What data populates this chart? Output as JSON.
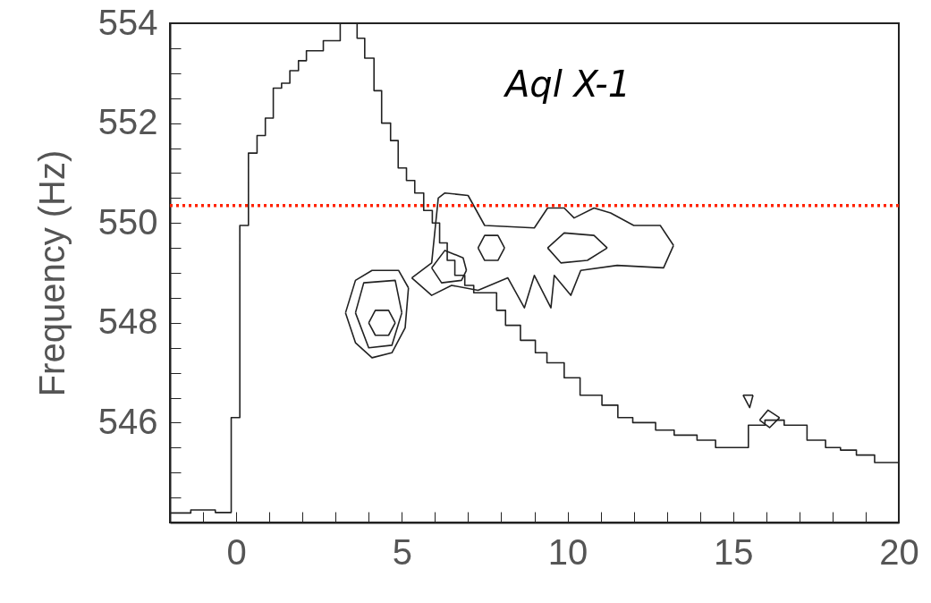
{
  "chart_data": {
    "type": "line",
    "ylabel": "Frequency (Hz)",
    "annotations": [
      "Aql X-1"
    ],
    "xlim": [
      -2,
      20
    ],
    "ylim": [
      544,
      554
    ],
    "xticks": [
      {
        "value": -2,
        "label": null
      },
      {
        "value": -1,
        "label": null
      },
      0,
      {
        "value": 1,
        "label": null
      },
      {
        "value": 2,
        "label": null
      },
      {
        "value": 3,
        "label": null
      },
      {
        "value": 4,
        "label": null
      },
      5,
      {
        "value": 6,
        "label": null
      },
      {
        "value": 7,
        "label": null
      },
      {
        "value": 8,
        "label": null
      },
      {
        "value": 9,
        "label": null
      },
      10,
      {
        "value": 11,
        "label": null
      },
      {
        "value": 12,
        "label": null
      },
      {
        "value": 13,
        "label": null
      },
      {
        "value": 14,
        "label": null
      },
      15,
      {
        "value": 16,
        "label": null
      },
      {
        "value": 17,
        "label": null
      },
      {
        "value": 18,
        "label": null
      },
      {
        "value": 19,
        "label": null
      },
      20
    ],
    "yticks": [
      {
        "value": 544,
        "label": null
      },
      {
        "value": 544.5,
        "label": null
      },
      {
        "value": 545,
        "label": null
      },
      {
        "value": 545.5,
        "label": null
      },
      546,
      {
        "value": 546.5,
        "label": null
      },
      {
        "value": 547,
        "label": null
      },
      {
        "value": 547.5,
        "label": null
      },
      548,
      {
        "value": 548.5,
        "label": null
      },
      {
        "value": 549,
        "label": null
      },
      {
        "value": 549.5,
        "label": null
      },
      550,
      {
        "value": 550.5,
        "label": null
      },
      {
        "value": 551,
        "label": null
      },
      {
        "value": 551.5,
        "label": null
      },
      552,
      {
        "value": 552.5,
        "label": null
      },
      {
        "value": 553,
        "label": null
      },
      {
        "value": 553.5,
        "label": null
      },
      554
    ],
    "grid": false,
    "marker": "none",
    "line_style": "solid",
    "ref_lines": [
      {
        "axis": "y",
        "value": 550.35,
        "color": "#ff2200",
        "line_style": "dotted"
      }
    ],
    "series": [
      {
        "type": "step",
        "color": "#222222",
        "x": [
          -2,
          -1.37,
          -0.63,
          -0.15,
          0.11,
          0.37,
          0.63,
          0.88,
          1.12,
          1.37,
          1.62,
          1.88,
          2.12,
          2.63,
          3.14,
          3.65,
          3.88,
          4.16,
          4.39,
          4.66,
          4.89,
          5.14,
          5.39,
          5.66,
          5.92,
          6.14,
          6.37,
          6.6,
          6.9,
          7.17,
          7.86,
          8.13,
          8.58,
          9.03,
          9.38,
          9.9,
          10.38,
          11.04,
          11.52,
          11.97,
          12.66,
          13.22,
          13.91,
          14.47,
          15.46,
          15.96,
          16.54,
          17.23,
          17.79,
          18.24,
          18.72,
          19.27,
          20
        ],
        "values": [
          544.19,
          544.25,
          544.2,
          546.1,
          549.95,
          551.4,
          551.75,
          552.1,
          552.7,
          552.8,
          553.05,
          553.25,
          553.45,
          553.65,
          554,
          553.7,
          553.3,
          552.65,
          552,
          551.65,
          551.1,
          550.85,
          550.6,
          550.25,
          550,
          549.6,
          549.25,
          548.95,
          548.75,
          548.6,
          548.25,
          547.95,
          547.65,
          547.4,
          547.2,
          546.9,
          546.55,
          546.35,
          546.1,
          546,
          545.85,
          545.75,
          545.65,
          545.5,
          545.95,
          546.05,
          545.95,
          545.65,
          545.5,
          545.45,
          545.35,
          545.2,
          545.2
        ]
      },
      {
        "color": "#222222",
        "x": [
          3.3,
          3.6,
          4.1,
          4.9,
          5.2
        ],
        "values": [
          548.2,
          548.85,
          549.05,
          549.05,
          548.7
        ]
      },
      {
        "color": "#222222",
        "x": [
          3.3,
          3.6,
          4.1,
          4.7,
          5.1,
          5.2
        ],
        "values": [
          548.2,
          547.6,
          547.3,
          547.4,
          547.9,
          548.7
        ]
      },
      {
        "color": "#222222",
        "x": [
          3.6,
          3.85,
          4.8,
          5
        ],
        "values": [
          548.2,
          548.8,
          548.85,
          548.2
        ]
      },
      {
        "color": "#222222",
        "x": [
          3.6,
          4,
          4.7,
          5
        ],
        "values": [
          548.2,
          547.5,
          547.55,
          548.2
        ]
      },
      {
        "color": "#222222",
        "x": [
          4,
          4.2,
          4.6,
          4.8
        ],
        "values": [
          548,
          548.25,
          548.25,
          548
        ]
      },
      {
        "color": "#222222",
        "x": [
          4,
          4.2,
          4.6,
          4.8
        ],
        "values": [
          548,
          547.75,
          547.75,
          548
        ]
      },
      {
        "color": "#222222",
        "x": [
          5.3,
          5.9,
          6.1,
          6.3,
          7,
          7.5,
          9,
          9.4,
          9.9,
          10.2,
          10.8,
          11.3,
          12,
          12.8,
          13.2
        ],
        "values": [
          548.9,
          549.2,
          550.5,
          550.6,
          550.55,
          549.95,
          549.9,
          550.3,
          550.3,
          550.1,
          550.3,
          550.2,
          549.95,
          549.95,
          549.55
        ]
      },
      {
        "color": "#222222",
        "x": [
          5.3,
          5.9,
          6.5,
          7.3,
          8.2,
          8.7,
          9,
          9.5,
          9.6,
          10.1,
          10.4,
          11.5,
          12.9,
          13.2
        ],
        "values": [
          548.9,
          548.55,
          548.75,
          548.65,
          548.9,
          548.3,
          548.95,
          548.3,
          548.95,
          548.55,
          549.05,
          549.15,
          549.1,
          549.55
        ]
      },
      {
        "color": "#222222",
        "x": [
          5.9,
          6.3,
          6.85,
          6.95
        ],
        "values": [
          549.1,
          549.45,
          549.3,
          549.05
        ]
      },
      {
        "color": "#222222",
        "x": [
          5.9,
          6.2,
          6.8,
          6.95
        ],
        "values": [
          549.1,
          548.8,
          548.85,
          549.05
        ]
      },
      {
        "color": "#222222",
        "x": [
          7.3,
          7.5,
          7.9,
          8.1
        ],
        "values": [
          549.5,
          549.75,
          549.75,
          549.5
        ]
      },
      {
        "color": "#222222",
        "x": [
          7.3,
          7.5,
          7.9,
          8.1
        ],
        "values": [
          549.5,
          549.25,
          549.25,
          549.5
        ]
      },
      {
        "color": "#222222",
        "x": [
          9.4,
          9.9,
          10.8,
          11.2
        ],
        "values": [
          549.5,
          549.8,
          549.75,
          549.5
        ]
      },
      {
        "color": "#222222",
        "x": [
          9.4,
          9.8,
          10.6,
          11.2
        ],
        "values": [
          549.5,
          549.2,
          549.25,
          549.5
        ]
      },
      {
        "color": "#222222",
        "x": [
          15.8,
          16.05,
          16.4
        ],
        "values": [
          546.05,
          546.25,
          546.1
        ]
      },
      {
        "color": "#222222",
        "x": [
          15.8,
          16.1,
          16.4
        ],
        "values": [
          546.05,
          545.9,
          546.1
        ]
      },
      {
        "color": "#222222",
        "x": [
          15.3,
          15.6
        ],
        "values": [
          546.55,
          546.55
        ]
      },
      {
        "color": "#222222",
        "x": [
          15.3,
          15.5,
          15.6
        ],
        "values": [
          546.55,
          546.3,
          546.55
        ]
      }
    ]
  }
}
